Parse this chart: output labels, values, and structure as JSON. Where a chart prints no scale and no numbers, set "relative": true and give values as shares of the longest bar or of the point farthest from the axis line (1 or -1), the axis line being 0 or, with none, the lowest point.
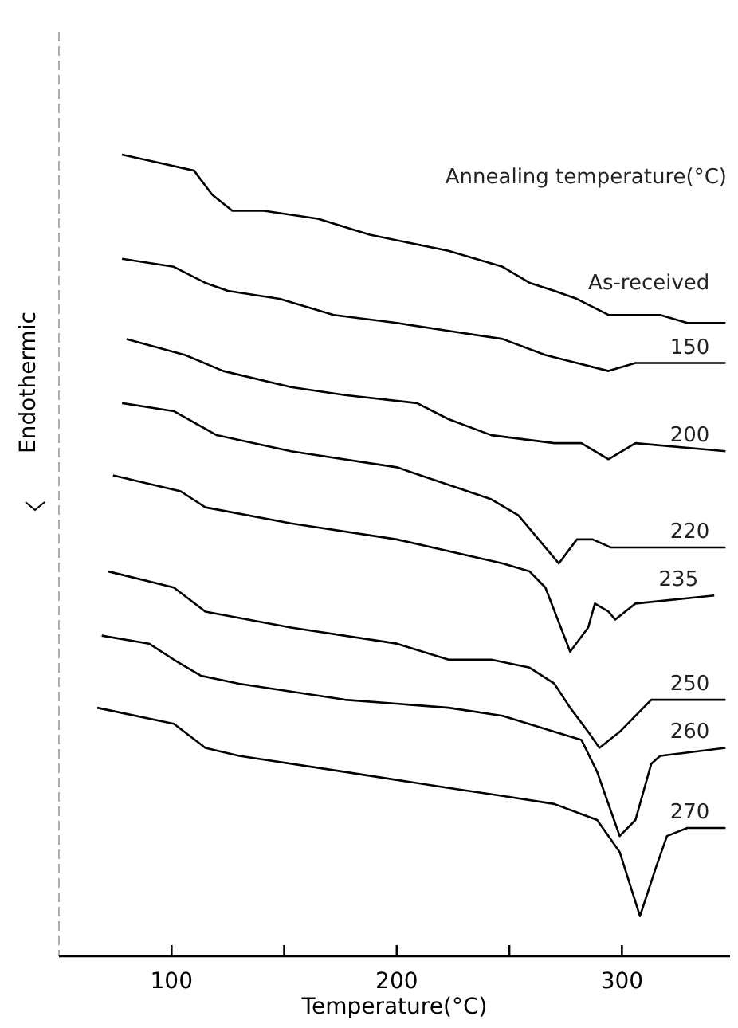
{
  "chart_data": {
    "type": "line",
    "relative": true,
    "xlabel": "Temperature(°C)",
    "ylabel": "Endothermic",
    "legend_title": "Annealing temperature(°C)",
    "xlim": [
      50,
      348
    ],
    "xticks": [
      100,
      {
        "value": 150,
        "label": null
      },
      200,
      {
        "value": 250,
        "label": null
      },
      300
    ],
    "grid": false,
    "marker": "none",
    "line_style": "solid",
    "series": [
      {
        "name": "As-received",
        "color": "#000000",
        "x": [
          78,
          94,
          110,
          118,
          127,
          141,
          165,
          188,
          223,
          247,
          259,
          270,
          280,
          294,
          306,
          317,
          329,
          346
        ],
        "values": [
          1.0,
          0.99,
          0.98,
          0.95,
          0.93,
          0.93,
          0.92,
          0.9,
          0.88,
          0.86,
          0.84,
          0.83,
          0.82,
          0.8,
          0.8,
          0.8,
          0.79,
          0.79
        ]
      },
      {
        "name": "150",
        "color": "#000000",
        "x": [
          78,
          101,
          115,
          125,
          148,
          172,
          200,
          223,
          247,
          266,
          280,
          294,
          306,
          317,
          346
        ],
        "values": [
          0.87,
          0.86,
          0.84,
          0.83,
          0.82,
          0.8,
          0.79,
          0.78,
          0.77,
          0.75,
          0.74,
          0.73,
          0.74,
          0.74,
          0.74
        ]
      },
      {
        "name": "200",
        "color": "#000000",
        "x": [
          80,
          106,
          123,
          153,
          177,
          209,
          223,
          242,
          270,
          282,
          294,
          306,
          346
        ],
        "values": [
          0.77,
          0.75,
          0.73,
          0.71,
          0.7,
          0.69,
          0.67,
          0.65,
          0.64,
          0.64,
          0.62,
          0.64,
          0.63
        ]
      },
      {
        "name": "220",
        "color": "#000000",
        "x": [
          78,
          101,
          120,
          153,
          200,
          242,
          254,
          263,
          272,
          280,
          287,
          295,
          306,
          346
        ],
        "values": [
          0.69,
          0.68,
          0.65,
          0.63,
          0.61,
          0.57,
          0.55,
          0.52,
          0.49,
          0.52,
          0.52,
          0.51,
          0.51,
          0.51
        ]
      },
      {
        "name": "235",
        "color": "#000000",
        "x": [
          74,
          104,
          115,
          153,
          200,
          247,
          259,
          266,
          277,
          285,
          288,
          294,
          297,
          306,
          341
        ],
        "values": [
          0.6,
          0.58,
          0.56,
          0.54,
          0.52,
          0.49,
          0.48,
          0.46,
          0.38,
          0.41,
          0.44,
          0.43,
          0.42,
          0.44,
          0.45
        ]
      },
      {
        "name": "250",
        "color": "#000000",
        "x": [
          72,
          101,
          115,
          153,
          200,
          223,
          242,
          259,
          270,
          277,
          285,
          290,
          299,
          313,
          346
        ],
        "values": [
          0.48,
          0.46,
          0.43,
          0.41,
          0.39,
          0.37,
          0.37,
          0.36,
          0.34,
          0.31,
          0.28,
          0.26,
          0.28,
          0.32,
          0.32
        ]
      },
      {
        "name": "260",
        "color": "#000000",
        "x": [
          69,
          90,
          101,
          113,
          130,
          177,
          223,
          247,
          270,
          282,
          289,
          299,
          306,
          313,
          317,
          346
        ],
        "values": [
          0.4,
          0.39,
          0.37,
          0.35,
          0.34,
          0.32,
          0.31,
          0.3,
          0.28,
          0.27,
          0.23,
          0.15,
          0.17,
          0.24,
          0.25,
          0.26
        ]
      },
      {
        "name": "270",
        "color": "#000000",
        "x": [
          67,
          101,
          115,
          130,
          177,
          223,
          247,
          270,
          289,
          299,
          308,
          315,
          320,
          329,
          346
        ],
        "values": [
          0.31,
          0.29,
          0.26,
          0.25,
          0.23,
          0.21,
          0.2,
          0.19,
          0.17,
          0.13,
          0.05,
          0.11,
          0.15,
          0.16,
          0.16
        ]
      }
    ]
  }
}
